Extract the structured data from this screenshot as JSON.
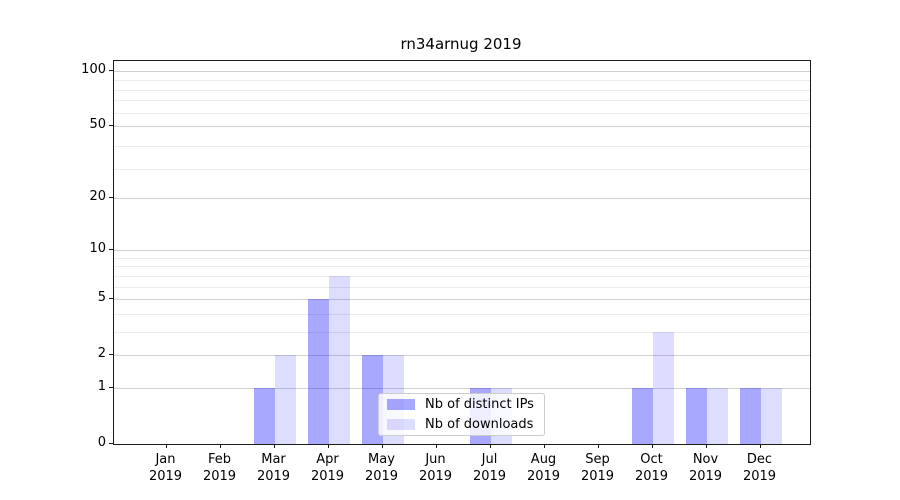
{
  "chart_data": {
    "type": "bar",
    "title": "rn34arnug 2019",
    "categories": [
      "Jan",
      "Feb",
      "Mar",
      "Apr",
      "May",
      "Jun",
      "Jul",
      "Aug",
      "Sep",
      "Oct",
      "Nov",
      "Dec"
    ],
    "year_label": "2019",
    "series": [
      {
        "name": "Nb of distinct IPs",
        "color": "rgba(0,0,255,0.34)",
        "values": [
          0,
          0,
          1,
          5,
          2,
          0,
          1,
          0,
          0,
          1,
          1,
          1
        ]
      },
      {
        "name": "Nb of downloads",
        "color": "rgba(0,0,255,0.135)",
        "values": [
          0,
          0,
          2,
          7,
          2,
          0,
          1,
          0,
          0,
          3,
          1,
          1
        ]
      }
    ],
    "y_axis": {
      "scale": "log1p",
      "ticks": [
        0,
        1,
        2,
        5,
        10,
        20,
        50,
        100
      ],
      "range_max": 113
    },
    "grid": "major and minor horizontal log gridlines",
    "legend_position": "inside plot, lower center",
    "colors": {
      "distinct_ips": "#aaaaff",
      "downloads": "#dddeff",
      "major_grid": "#d2d2d2",
      "minor_grid": "#ececec",
      "spine": "#1a1a1a"
    }
  }
}
